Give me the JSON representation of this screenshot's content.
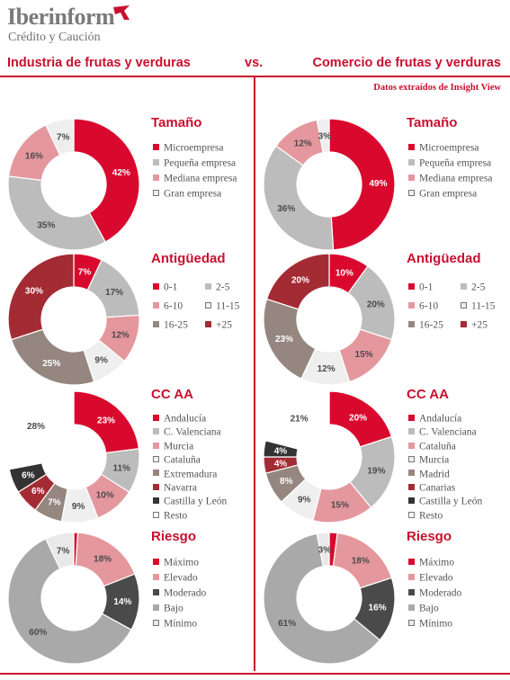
{
  "header": {
    "brand": "Iberinform",
    "brand_sub": "Crédito y Caución",
    "title_left": "Industria de frutas y verduras",
    "title_vs": "vs.",
    "title_right": "Comercio de frutas y verduras",
    "source": "Datos extraídos de Insight View"
  },
  "colors": {
    "brand_red": "#c8102e",
    "micro": "#d9092e",
    "pequena": "#bcbcbc",
    "mediana": "#e5979e",
    "grande": "#eeeeee",
    "a_0_1": "#d9092e",
    "a_2_5": "#bcbcbc",
    "a_6_10": "#e5979e",
    "a_11_15": "#efefef",
    "a_16_25": "#958680",
    "a_25": "#a32b34",
    "resto": "#ffffff",
    "castilla_leon": "#333333",
    "extremadura": "#958680",
    "moderado": "#4a4a4a",
    "bajo": "#a9a9a9",
    "minimo": "#e9e9e9"
  },
  "chart_data": [
    {
      "type": "pie",
      "panel": "left",
      "title": "Tamaño",
      "slices": [
        {
          "label": "Microempresa",
          "value": 42,
          "text": "42%",
          "color": "#d9092e"
        },
        {
          "label": "Pequeña empresa",
          "value": 35,
          "text": "35%",
          "color": "#bcbcbc"
        },
        {
          "label": "Mediana empresa",
          "value": 16,
          "text": "16%",
          "color": "#e5979e"
        },
        {
          "label": "Gran empresa",
          "value": 7,
          "text": "7%",
          "color": "#eeeeee"
        }
      ]
    },
    {
      "type": "pie",
      "panel": "left",
      "title": "Antigüedad",
      "slices": [
        {
          "label": "0-1",
          "value": 7,
          "text": "7%",
          "color": "#d9092e"
        },
        {
          "label": "2-5",
          "value": 17,
          "text": "17%",
          "color": "#bcbcbc"
        },
        {
          "label": "6-10",
          "value": 12,
          "text": "12%",
          "color": "#e5979e"
        },
        {
          "label": "11-15",
          "value": 9,
          "text": "9%",
          "color": "#efefef"
        },
        {
          "label": "16-25",
          "value": 25,
          "text": "25%",
          "color": "#958680"
        },
        {
          "label": "+25",
          "value": 30,
          "text": "30%",
          "color": "#a32b34"
        }
      ]
    },
    {
      "type": "pie",
      "panel": "left",
      "title": "CC AA",
      "slices": [
        {
          "label": "Andalucía",
          "value": 23,
          "text": "23%",
          "color": "#d9092e"
        },
        {
          "label": "C. Valenciana",
          "value": 11,
          "text": "11%",
          "color": "#bcbcbc"
        },
        {
          "label": "Murcia",
          "value": 10,
          "text": "10%",
          "color": "#e5979e"
        },
        {
          "label": "Cataluña",
          "value": 9,
          "text": "9%",
          "color": "#efefef"
        },
        {
          "label": "Extremadura",
          "value": 7,
          "text": "7%",
          "color": "#958680"
        },
        {
          "label": "Navarra",
          "value": 6,
          "text": "6%",
          "color": "#a32b34"
        },
        {
          "label": "Castilla y León",
          "value": 6,
          "text": "6%",
          "color": "#333333"
        },
        {
          "label": "Resto",
          "value": 28,
          "text": "28%",
          "color": "#ffffff"
        }
      ]
    },
    {
      "type": "pie",
      "panel": "left",
      "title": "Riesgo",
      "slices": [
        {
          "label": "Máximo",
          "value": 1,
          "text": "",
          "color": "#d9092e"
        },
        {
          "label": "Elevado",
          "value": 18,
          "text": "18%",
          "color": "#e5979e"
        },
        {
          "label": "Moderado",
          "value": 14,
          "text": "14%",
          "color": "#4a4a4a"
        },
        {
          "label": "Bajo",
          "value": 60,
          "text": "60%",
          "color": "#a9a9a9"
        },
        {
          "label": "Mínimo",
          "value": 7,
          "text": "7%",
          "color": "#e9e9e9"
        }
      ]
    },
    {
      "type": "pie",
      "panel": "right",
      "title": "Tamaño",
      "slices": [
        {
          "label": "Microempresa",
          "value": 49,
          "text": "49%",
          "color": "#d9092e"
        },
        {
          "label": "Pequeña empresa",
          "value": 36,
          "text": "36%",
          "color": "#bcbcbc"
        },
        {
          "label": "Mediana empresa",
          "value": 12,
          "text": "12%",
          "color": "#e5979e"
        },
        {
          "label": "Gran empresa",
          "value": 3,
          "text": "3%",
          "color": "#eeeeee"
        }
      ]
    },
    {
      "type": "pie",
      "panel": "right",
      "title": "Antigüedad",
      "slices": [
        {
          "label": "0-1",
          "value": 10,
          "text": "10%",
          "color": "#d9092e"
        },
        {
          "label": "2-5",
          "value": 20,
          "text": "20%",
          "color": "#bcbcbc"
        },
        {
          "label": "6-10",
          "value": 15,
          "text": "15%",
          "color": "#e5979e"
        },
        {
          "label": "11-15",
          "value": 12,
          "text": "12%",
          "color": "#efefef"
        },
        {
          "label": "16-25",
          "value": 23,
          "text": "23%",
          "color": "#958680"
        },
        {
          "label": "+25",
          "value": 20,
          "text": "20%",
          "color": "#a32b34"
        }
      ]
    },
    {
      "type": "pie",
      "panel": "right",
      "title": "CC AA",
      "slices": [
        {
          "label": "Andalucía",
          "value": 20,
          "text": "20%",
          "color": "#d9092e"
        },
        {
          "label": "C. Valenciana",
          "value": 19,
          "text": "19%",
          "color": "#bcbcbc"
        },
        {
          "label": "Cataluña",
          "value": 15,
          "text": "15%",
          "color": "#e5979e"
        },
        {
          "label": "Murcia",
          "value": 9,
          "text": "9%",
          "color": "#efefef"
        },
        {
          "label": "Madrid",
          "value": 8,
          "text": "8%",
          "color": "#958680"
        },
        {
          "label": "Canarias",
          "value": 4,
          "text": "4%",
          "color": "#a32b34"
        },
        {
          "label": "Castilla y León",
          "value": 4,
          "text": "4%",
          "color": "#333333"
        },
        {
          "label": "Resto",
          "value": 21,
          "text": "21%",
          "color": "#ffffff"
        }
      ]
    },
    {
      "type": "pie",
      "panel": "right",
      "title": "Riesgo",
      "slices": [
        {
          "label": "Máximo",
          "value": 2,
          "text": "",
          "color": "#d9092e"
        },
        {
          "label": "Elevado",
          "value": 18,
          "text": "18%",
          "color": "#e5979e"
        },
        {
          "label": "Moderado",
          "value": 16,
          "text": "16%",
          "color": "#4a4a4a"
        },
        {
          "label": "Bajo",
          "value": 61,
          "text": "61%",
          "color": "#a9a9a9"
        },
        {
          "label": "Mínimo",
          "value": 3,
          "text": "3%",
          "color": "#e9e9e9"
        }
      ]
    }
  ]
}
